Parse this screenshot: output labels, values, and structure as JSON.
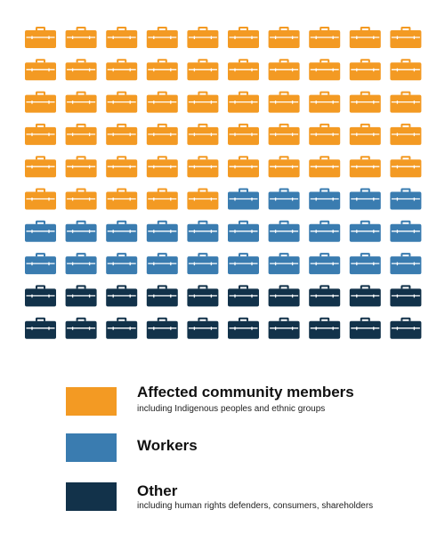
{
  "chart_data": {
    "type": "icon-array",
    "icon": "briefcase-icon",
    "rows": 10,
    "columns": 10,
    "total": 100,
    "series": [
      {
        "name": "Affected community members",
        "subtitle": "including Indigenous peoples and ethnic groups",
        "value": 55,
        "color": "#F39A23"
      },
      {
        "name": "Workers",
        "subtitle": "",
        "value": 25,
        "color": "#3A7CB0"
      },
      {
        "name": "Other",
        "subtitle": "including human rights defenders, consumers, shareholders",
        "value": 20,
        "color": "#12324A"
      }
    ],
    "legend_position": "bottom-left"
  }
}
